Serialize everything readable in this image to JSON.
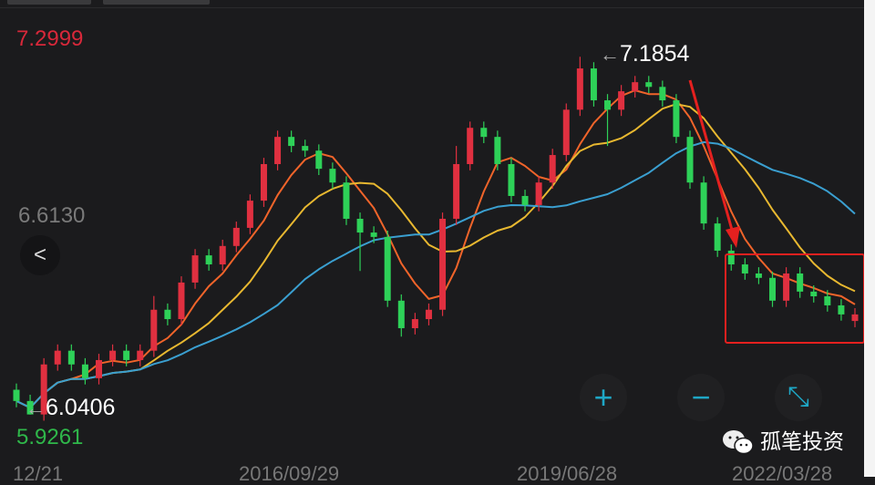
{
  "chart_data": {
    "type": "candlestick",
    "price_labels": {
      "top": "7.2999",
      "middle": "6.6130",
      "bottom": "5.9261"
    },
    "ylim": [
      5.9261,
      7.2999
    ],
    "annotations": {
      "high": "7.1854",
      "low": "6.0406"
    },
    "x_tick_labels": [
      "12/21",
      "2016/09/29",
      "2019/06/28",
      "2022/03/28"
    ],
    "up_color": "#e03040",
    "down_color": "#2ed158",
    "moving_averages": [
      {
        "period": 5,
        "color": "#f0642a"
      },
      {
        "period": 10,
        "color": "#e8b830"
      },
      {
        "period": 20,
        "color": "#3a9fd0"
      }
    ],
    "candles": [
      [
        6.12,
        6.14,
        6.064,
        6.084
      ],
      [
        6.084,
        6.104,
        6.0406,
        6.041
      ],
      [
        6.041,
        6.221,
        6.021,
        6.201
      ],
      [
        6.201,
        6.265,
        6.181,
        6.245
      ],
      [
        6.245,
        6.265,
        6.181,
        6.201
      ],
      [
        6.201,
        6.221,
        6.137,
        6.157
      ],
      [
        6.157,
        6.235,
        6.137,
        6.215
      ],
      [
        6.215,
        6.265,
        6.195,
        6.245
      ],
      [
        6.245,
        6.265,
        6.195,
        6.215
      ],
      [
        6.215,
        6.265,
        6.195,
        6.245
      ],
      [
        6.245,
        6.42,
        6.225,
        6.376
      ],
      [
        6.376,
        6.396,
        6.326,
        6.346
      ],
      [
        6.346,
        6.483,
        6.326,
        6.463
      ],
      [
        6.463,
        6.57,
        6.443,
        6.55
      ],
      [
        6.55,
        6.57,
        6.501,
        6.521
      ],
      [
        6.521,
        6.6,
        6.501,
        6.58
      ],
      [
        6.58,
        6.658,
        6.56,
        6.638
      ],
      [
        6.638,
        6.745,
        6.618,
        6.725
      ],
      [
        6.725,
        6.862,
        6.705,
        6.842
      ],
      [
        6.842,
        6.949,
        6.822,
        6.929
      ],
      [
        6.929,
        6.949,
        6.88,
        6.9
      ],
      [
        6.9,
        6.92,
        6.865,
        6.885
      ],
      [
        6.885,
        6.905,
        6.807,
        6.827
      ],
      [
        6.827,
        6.847,
        6.763,
        6.783
      ],
      [
        6.783,
        6.803,
        6.647,
        6.667
      ],
      [
        6.667,
        6.687,
        6.5,
        6.623
      ],
      [
        6.623,
        6.643,
        6.589,
        6.609
      ],
      [
        6.609,
        6.629,
        6.385,
        6.405
      ],
      [
        6.405,
        6.425,
        6.29,
        6.317
      ],
      [
        6.317,
        6.366,
        6.297,
        6.346
      ],
      [
        6.346,
        6.396,
        6.326,
        6.376
      ],
      [
        6.376,
        6.687,
        6.356,
        6.667
      ],
      [
        6.667,
        6.9,
        6.647,
        6.842
      ],
      [
        6.842,
        6.978,
        6.822,
        6.958
      ],
      [
        6.958,
        6.978,
        6.909,
        6.929
      ],
      [
        6.929,
        6.949,
        6.822,
        6.842
      ],
      [
        6.842,
        6.862,
        6.72,
        6.74
      ],
      [
        6.74,
        6.76,
        6.691,
        6.711
      ],
      [
        6.711,
        6.803,
        6.691,
        6.783
      ],
      [
        6.783,
        6.891,
        6.763,
        6.871
      ],
      [
        6.871,
        7.036,
        6.851,
        7.016
      ],
      [
        7.016,
        7.1854,
        6.996,
        7.148
      ],
      [
        7.148,
        7.168,
        7.026,
        7.046
      ],
      [
        7.046,
        7.066,
        6.9,
        7.016
      ],
      [
        7.016,
        7.095,
        6.996,
        7.075
      ],
      [
        7.075,
        7.124,
        7.055,
        7.104
      ],
      [
        7.104,
        7.124,
        7.069,
        7.089
      ],
      [
        7.089,
        7.109,
        7.026,
        7.046
      ],
      [
        7.046,
        7.066,
        6.909,
        6.929
      ],
      [
        6.929,
        6.949,
        6.763,
        6.783
      ],
      [
        6.783,
        6.803,
        6.632,
        6.652
      ],
      [
        6.652,
        6.672,
        6.545,
        6.565
      ],
      [
        6.565,
        6.585,
        6.501,
        6.521
      ],
      [
        6.521,
        6.541,
        6.472,
        6.492
      ],
      [
        6.492,
        6.512,
        6.458,
        6.478
      ],
      [
        6.478,
        6.498,
        6.385,
        6.405
      ],
      [
        6.405,
        6.512,
        6.385,
        6.492
      ],
      [
        6.492,
        6.512,
        6.414,
        6.434
      ],
      [
        6.434,
        6.454,
        6.399,
        6.419
      ],
      [
        6.419,
        6.439,
        6.37,
        6.39
      ],
      [
        6.39,
        6.41,
        6.341,
        6.361
      ],
      [
        6.34,
        6.381,
        6.32,
        6.361
      ]
    ]
  },
  "controls": {
    "back": "<",
    "zoom_in": "+",
    "zoom_out": "−",
    "fullscreen": "⤡"
  },
  "watermark": {
    "text": "孤笔投资",
    "icon": "wechat-icon"
  },
  "arrow_glyph": "←"
}
